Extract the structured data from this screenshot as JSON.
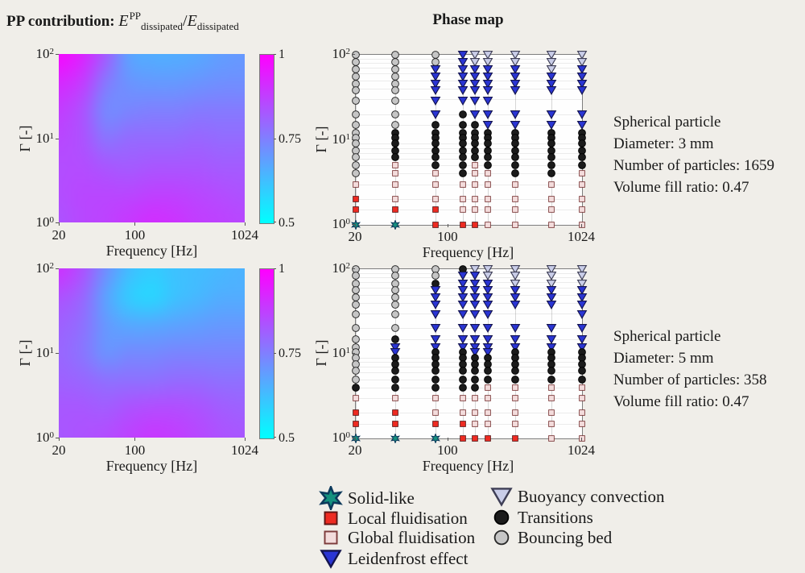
{
  "titles": {
    "pp_prefix": "PP contribution: ",
    "pp_E1": "E",
    "pp_sup1": "PP",
    "pp_sub1": "dissipated",
    "pp_slash": "/",
    "pp_E2": "E",
    "pp_sub2": "dissipated",
    "phase": "Phase map"
  },
  "axis": {
    "xlabel": "Frequency [Hz]",
    "ylabel": "Γ [-]",
    "xtick_labels": [
      "20",
      "100",
      "1024"
    ],
    "xtick_values": [
      20,
      100,
      1024
    ],
    "ytick_base": "10",
    "ytick_exponents_top_to_bottom": [
      "2",
      "1",
      "0"
    ]
  },
  "colorbar": {
    "tick_labels_top_to_bottom": [
      "1",
      "0.75",
      "0.5"
    ],
    "min": 0.5,
    "max": 1,
    "colormap": "cool (cyan to magenta)"
  },
  "annotations": [
    {
      "lines": [
        "Spherical particle",
        "Diameter: 3 mm",
        "Number of particles: 1659",
        "Volume fill ratio: 0.47"
      ]
    },
    {
      "lines": [
        "Spherical particle",
        "Diameter: 5 mm",
        "Number of particles: 358",
        "Volume fill ratio: 0.47"
      ]
    }
  ],
  "legend": {
    "items": [
      {
        "code": "s",
        "label": "Solid-like"
      },
      {
        "code": "f",
        "label": "Local fluidisation"
      },
      {
        "code": "g",
        "label": "Global fluidisation"
      },
      {
        "code": "l",
        "label": "Leidenfrost effect"
      },
      {
        "code": "y",
        "label": "Buoyancy convection"
      },
      {
        "code": "t",
        "label": "Transitions"
      },
      {
        "code": "b",
        "label": "Bouncing bed"
      }
    ]
  },
  "marker_styles": {
    "b": {
      "shape": "circle",
      "fill": "#c6c6c6",
      "stroke": "#2a2a2a",
      "name": "bouncing-bed"
    },
    "t": {
      "shape": "circle",
      "fill": "#1b1b1b",
      "stroke": "#000000",
      "name": "transitions"
    },
    "l": {
      "shape": "triangle-down",
      "fill": "#2a35d4",
      "stroke": "#14144e",
      "name": "leidenfrost-effect"
    },
    "y": {
      "shape": "triangle-down",
      "fill": "#c9cde8",
      "stroke": "#3e3e55",
      "name": "buoyancy-convection"
    },
    "g": {
      "shape": "square",
      "fill": "#f3dcdc",
      "stroke": "#7d3b3b",
      "name": "global-fluidisation"
    },
    "f": {
      "shape": "square",
      "fill": "#ee2b22",
      "stroke": "#5c1414",
      "name": "local-fluidisation"
    },
    "s": {
      "shape": "star6",
      "fill": "#15917f",
      "stroke": "#0d3a5c",
      "name": "solid-like"
    }
  },
  "chart_data": [
    {
      "id": "pp_contribution_3mm",
      "type": "heatmap",
      "title": "PP contribution: E^PP_dissipated / E_dissipated",
      "xlabel": "Frequency [Hz]",
      "ylabel": "Γ [-]",
      "xscale": "log",
      "yscale": "log",
      "xlim": [
        20,
        1024
      ],
      "ylim": [
        1,
        100
      ],
      "xticks": [
        "20",
        "100",
        "1024"
      ],
      "yticks": [
        "10^0",
        "10^1",
        "10^2"
      ],
      "colorbar": {
        "min": 0.5,
        "max": 1,
        "ticks": [
          "0.5",
          "0.75",
          "1"
        ],
        "colormap": "cool"
      },
      "grid_freq_hz": [
        20,
        40,
        80,
        128,
        160,
        200,
        320,
        600,
        1024
      ],
      "grid_gamma_top_to_bottom": [
        100,
        46,
        22,
        10,
        4.6,
        2.2,
        1
      ],
      "values_rows_top_to_bottom": [
        [
          0.98,
          0.93,
          0.82,
          0.68,
          0.66,
          0.66,
          0.67,
          0.69,
          0.7
        ],
        [
          0.92,
          0.88,
          0.76,
          0.71,
          0.7,
          0.7,
          0.71,
          0.72,
          0.72
        ],
        [
          0.88,
          0.84,
          0.73,
          0.74,
          0.75,
          0.75,
          0.76,
          0.76,
          0.76
        ],
        [
          0.86,
          0.84,
          0.77,
          0.79,
          0.79,
          0.79,
          0.8,
          0.79,
          0.79
        ],
        [
          0.85,
          0.85,
          0.83,
          0.82,
          0.83,
          0.83,
          0.83,
          0.82,
          0.82
        ],
        [
          0.85,
          0.86,
          0.86,
          0.86,
          0.87,
          0.87,
          0.86,
          0.85,
          0.84
        ],
        [
          0.84,
          0.86,
          0.87,
          0.89,
          0.91,
          0.9,
          0.88,
          0.87,
          0.86
        ]
      ]
    },
    {
      "id": "phase_map_3mm",
      "type": "scatter",
      "title": "Phase map",
      "xlabel": "Frequency [Hz]",
      "ylabel": "Γ [-]",
      "xscale": "log",
      "yscale": "log",
      "xlim": [
        20,
        1024
      ],
      "ylim": [
        1,
        100
      ],
      "xticks": [
        "20",
        "100",
        "1024"
      ],
      "yticks": [
        "10^0",
        "10^1",
        "10^2"
      ],
      "frequencies_hz": [
        20,
        40,
        80,
        128,
        160,
        200,
        320,
        600,
        1024
      ],
      "gammas_top_to_bottom": [
        100,
        83,
        68,
        56,
        46,
        38,
        29,
        20,
        15,
        12,
        10.5,
        9,
        7.5,
        6.3,
        5,
        4,
        3,
        2,
        1.5,
        1
      ],
      "marker_code_map": {
        "b": "Bouncing bed",
        "t": "Transitions",
        "l": "Leidenfrost effect",
        "y": "Buoyancy convection",
        "g": "Global fluidisation",
        "f": "Local fluidisation",
        "s": "Solid-like",
        ".": "none"
      },
      "columns_top_to_bottom": [
        "bbbbbbbbbbbbbbbbgffs",
        "bbbbbbbbbtttttggggfs",
        "bblllllltttttttgggff",
        "llllllltttttttttgggf",
        "yyllllllttttttgggggf",
        "yylllllllttttttggggg",
        "yyllll.lltttttttgggg",
        "yyylll.lltttttttgggg",
        "yyllll.llttttttggggg"
      ]
    },
    {
      "id": "pp_contribution_5mm",
      "type": "heatmap",
      "title": "PP contribution: E^PP_dissipated / E_dissipated",
      "xlabel": "Frequency [Hz]",
      "ylabel": "Γ [-]",
      "xscale": "log",
      "yscale": "log",
      "xlim": [
        20,
        1024
      ],
      "ylim": [
        1,
        100
      ],
      "xticks": [
        "20",
        "100",
        "1024"
      ],
      "yticks": [
        "10^0",
        "10^1",
        "10^2"
      ],
      "colorbar": {
        "min": 0.5,
        "max": 1,
        "ticks": [
          "0.5",
          "0.75",
          "1"
        ],
        "colormap": "cool"
      },
      "grid_freq_hz": [
        20,
        40,
        80,
        128,
        160,
        200,
        320,
        600,
        1024
      ],
      "grid_gamma_top_to_bottom": [
        100,
        46,
        22,
        10,
        4.6,
        2.2,
        1
      ],
      "values_rows_top_to_bottom": [
        [
          0.9,
          0.84,
          0.72,
          0.63,
          0.6,
          0.62,
          0.63,
          0.64,
          0.65
        ],
        [
          0.84,
          0.8,
          0.68,
          0.6,
          0.58,
          0.62,
          0.64,
          0.66,
          0.66
        ],
        [
          0.81,
          0.78,
          0.7,
          0.67,
          0.67,
          0.68,
          0.69,
          0.7,
          0.7
        ],
        [
          0.8,
          0.77,
          0.71,
          0.73,
          0.73,
          0.74,
          0.74,
          0.74,
          0.74
        ],
        [
          0.81,
          0.8,
          0.78,
          0.78,
          0.78,
          0.79,
          0.79,
          0.78,
          0.78
        ],
        [
          0.83,
          0.83,
          0.82,
          0.84,
          0.85,
          0.85,
          0.84,
          0.82,
          0.81
        ],
        [
          0.83,
          0.84,
          0.85,
          0.87,
          0.89,
          0.88,
          0.86,
          0.84,
          0.83
        ]
      ]
    },
    {
      "id": "phase_map_5mm",
      "type": "scatter",
      "title": "Phase map",
      "xlabel": "Frequency [Hz]",
      "ylabel": "Γ [-]",
      "xscale": "log",
      "yscale": "log",
      "xlim": [
        20,
        1024
      ],
      "ylim": [
        1,
        100
      ],
      "xticks": [
        "20",
        "100",
        "1024"
      ],
      "yticks": [
        "10^0",
        "10^1",
        "10^2"
      ],
      "frequencies_hz": [
        20,
        40,
        80,
        128,
        160,
        200,
        320,
        600,
        1024
      ],
      "gammas_top_to_bottom": [
        100,
        83,
        68,
        56,
        46,
        38,
        29,
        20,
        15,
        12,
        10.5,
        9,
        7.5,
        6.3,
        5,
        4,
        3,
        2,
        1.5,
        1
      ],
      "marker_code_map": {
        "b": "Bouncing bed",
        "t": "Transitions",
        "l": "Leidenfrost effect",
        "y": "Buoyancy convection",
        "g": "Global fluidisation",
        "f": "Local fluidisation",
        "s": "Solid-like",
        ".": "none"
      },
      "columns_top_to_bottom": [
        "bbbbbbbbbbbbbbbtgffs",
        "bbbbbbbbtlltttttgffs",
        "bbtlllllllttttttggfs",
        "tlllllllllttttttggff",
        "ylllllllllltttttgggf",
        "yylllllllllttttggggf",
        "yyylll.llltttttggggf",
        "yyylll.llltttttggggg",
        "yyyllllllltttttggggg"
      ]
    }
  ]
}
